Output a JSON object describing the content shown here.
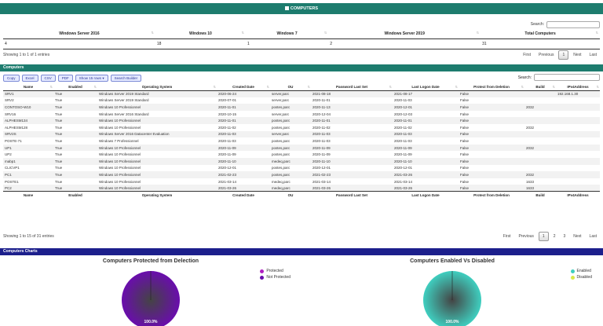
{
  "header": {
    "title": "COMPUTERS"
  },
  "summary": {
    "search_label": "Search:",
    "columns": [
      "Windows Server 2016",
      "Windows 10",
      "Windows 7",
      "Windows Server 2019",
      "Total Computers"
    ],
    "values": [
      "4",
      "18",
      "1",
      "2",
      "31"
    ],
    "info": "Showing 1 to 1 of 1 entries",
    "pager": {
      "first": "First",
      "previous": "Previous",
      "current": "1",
      "next": "Next",
      "last": "Last"
    }
  },
  "computers": {
    "title": "Computers",
    "buttons": [
      "Copy",
      "Excel",
      "CSV",
      "PDF",
      "Show 15 rows",
      "Search Builder"
    ],
    "search_label": "Search:",
    "columns": [
      "Name",
      "Enabled",
      "Operating System",
      "Created Date",
      "OU",
      "Password Last Set",
      "Last Logon Date",
      "Protect from Deletion",
      "Build",
      "IPv4Address"
    ],
    "rows": [
      [
        "SRV1",
        "True",
        "Windows Server 2019 Standard",
        "2020-06-24",
        "server,parc",
        "2021-08-18",
        "2021-08-17",
        "False",
        "",
        "192.168.1.30"
      ],
      [
        "SRV2",
        "True",
        "Windows Server 2019 Standard",
        "2020-07-01",
        "server,parc",
        "2020-11-01",
        "2020-11-03",
        "False",
        "",
        ""
      ],
      [
        "CONTOSO-W10",
        "True",
        "Windows 10 Professionnel",
        "2020-11-01",
        "postes,parc",
        "2020-11-13",
        "2020-12-01",
        "False",
        "2032",
        ""
      ],
      [
        "SRV16",
        "True",
        "Windows Server 2016 Standard",
        "2020-10-15",
        "server,parc",
        "2020-12-04",
        "2020-12-03",
        "False",
        "",
        ""
      ],
      [
        "ALPHESM134",
        "True",
        "Windows 10 Professionnel",
        "2020-11-01",
        "postes,parc",
        "2020-11-01",
        "2020-11-01",
        "False",
        "",
        ""
      ],
      [
        "ALPHESM128",
        "True",
        "Windows 10 Professionnel",
        "2020-11-02",
        "postes,parc",
        "2020-11-02",
        "2020-11-02",
        "False",
        "2032",
        ""
      ],
      [
        "SRV2S",
        "True",
        "Windows Server 2016 Datacenter Evaluation",
        "2020-11-03",
        "server,parc",
        "2020-11-03",
        "2020-11-03",
        "False",
        "",
        ""
      ],
      [
        "POSTE-71",
        "True",
        "Windows 7 Professionnel",
        "2020-11-03",
        "postes,parc",
        "2020-11-03",
        "2020-11-03",
        "False",
        "",
        ""
      ],
      [
        "UP1",
        "True",
        "Windows 10 Professionnel",
        "2020-11-09",
        "postes,parc",
        "2020-11-09",
        "2020-11-09",
        "False",
        "2032",
        ""
      ],
      [
        "UP2",
        "True",
        "Windows 10 Professionnel",
        "2020-11-09",
        "postes,parc",
        "2020-11-09",
        "2020-11-09",
        "False",
        "",
        ""
      ],
      [
        "mabp1",
        "True",
        "Windows 10 Professionnel",
        "2020-11-10",
        "medeq,parc",
        "2020-11-10",
        "2020-11-10",
        "False",
        "",
        ""
      ],
      [
        "CLICVP1",
        "True",
        "Windows 10 Professionnel",
        "2020-12-01",
        "postes,parc",
        "2020-12-01",
        "2020-12-01",
        "False",
        "",
        ""
      ],
      [
        "PC1",
        "True",
        "Windows 10 Professionnel",
        "2021-02-23",
        "postes,parc",
        "2021-02-23",
        "2021-03-26",
        "False",
        "2032",
        ""
      ],
      [
        "POSTE1",
        "True",
        "Windows 10 Professionnel",
        "2021-03-14",
        "medeq,parc",
        "2021-03-14",
        "2021-03-14",
        "False",
        "1633",
        ""
      ],
      [
        "PC2",
        "True",
        "Windows 10 Professionnel",
        "2021-03-26",
        "medeq,parc",
        "2021-03-26",
        "2021-03-26",
        "False",
        "1633",
        ""
      ]
    ],
    "info": "Showing 1 to 15 of 31 entries",
    "pager": {
      "first": "First",
      "previous": "Previous",
      "pages": [
        "1",
        "2",
        "3"
      ],
      "next": "Next",
      "last": "Last"
    }
  },
  "charts_panel": {
    "title": "Computers Charts"
  },
  "chart_data": [
    {
      "type": "pie",
      "title": "Computers Protected from Delection",
      "categories": [
        "Protected",
        "Not Protected"
      ],
      "values": [
        0,
        100
      ],
      "label": "100.0%",
      "colors": [
        "#b01fc2",
        "#6a0dad"
      ]
    },
    {
      "type": "pie",
      "title": "Computers Enabled Vs Disabled",
      "categories": [
        "Enabled",
        "Disabled"
      ],
      "values": [
        100,
        0
      ],
      "label": "100.0%",
      "colors": [
        "#3fcfc0",
        "#d8e84a"
      ]
    }
  ]
}
